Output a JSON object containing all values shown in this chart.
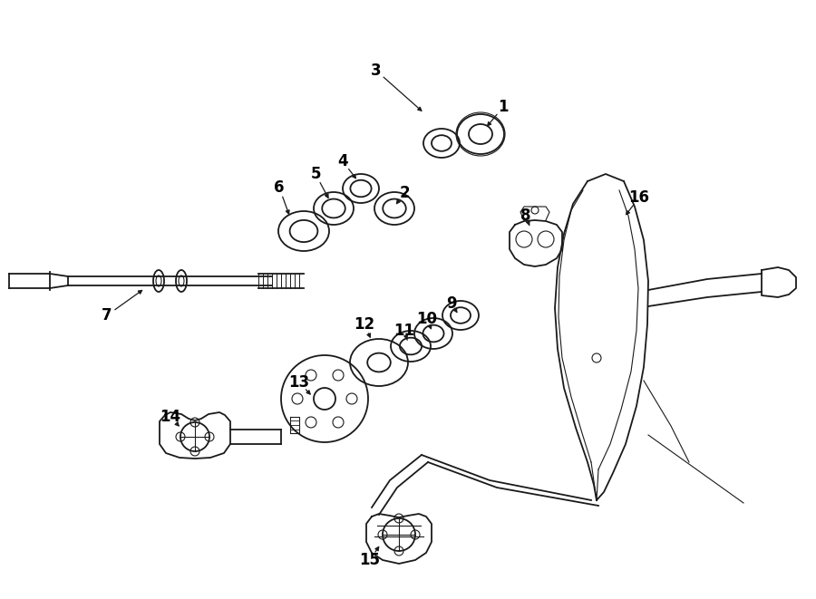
{
  "background_color": "#ffffff",
  "line_color": "#1a1a1a",
  "label_color": "#000000",
  "figsize": [
    9.0,
    6.61
  ],
  "dpi": 100,
  "label_fontsize": 12
}
